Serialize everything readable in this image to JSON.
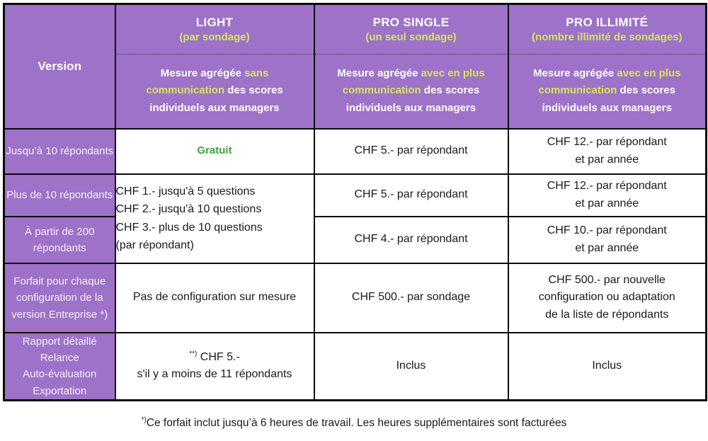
{
  "colors": {
    "purple": "#9e72c8",
    "lime": "#d6e45a",
    "green": "#3ea43e",
    "border": "#0a0a0a",
    "body_text": "#1a1a1a",
    "header_text": "#ffffff"
  },
  "table": {
    "header": {
      "version_label": "Version",
      "plans": [
        {
          "title": "LIGHT",
          "subtitle": "(par sondage)",
          "desc_pre": "Mesure agrégée ",
          "desc_bold": "sans communication",
          "desc_post": " des scores individuels aux managers"
        },
        {
          "title": "PRO SINGLE",
          "subtitle": "(un seul sondage)",
          "desc_pre": "Mesure agrégée ",
          "desc_bold": "avec en plus communication",
          "desc_post": " des scores individuels aux managers"
        },
        {
          "title": "PRO ILLIMITÉ",
          "subtitle": "(nombre illimité de sondages)",
          "desc_pre": "Mesure agrégée ",
          "desc_bold": "avec en plus communication",
          "desc_post": " des scores individuels aux managers"
        }
      ]
    },
    "rows": {
      "r1": {
        "label": "Jusqu’à 10 répondants",
        "light": "Gratuit",
        "pro_single": "CHF 5.- par répondant",
        "pro_illimite": [
          "CHF 12.- par répondant",
          "et par année"
        ]
      },
      "r2": {
        "label": "Plus de 10 répondants",
        "light_merged": [
          "CHF 1.- jusqu'à 5 questions",
          "CHF 2.- jusqu'à 10 questions",
          "CHF 3.- plus de 10 questions",
          "(par répondant)"
        ],
        "pro_single": "CHF 5.- par répondant",
        "pro_illimite": [
          "CHF 12.- par répondant",
          "et par année"
        ]
      },
      "r3": {
        "label": "À partir de 200 répondants",
        "pro_single": "CHF 4.- par répondant",
        "pro_illimite": [
          "CHF 10.- par répondant",
          "et par année"
        ]
      },
      "r4": {
        "label": "Forfait pour chaque configuration de la version Entreprise *)",
        "light": "Pas de configuration sur mesure",
        "pro_single": "CHF 500.- par sondage",
        "pro_illimite": [
          "CHF 500.- par nouvelle",
          "configuration ou adaptation",
          "de la liste de répondants"
        ]
      },
      "r5": {
        "label_lines": [
          "Rapport détaillé",
          "Relance",
          "Auto-évaluation",
          "Exportation"
        ],
        "light_sup": "**)",
        "light_price": " CHF 5.-",
        "light_line2": "s'il y a moins de 11 répondants",
        "pro_single": "Inclus",
        "pro_illimite": "Inclus"
      }
    }
  },
  "footnote": {
    "sup": "*)",
    "text": "Ce forfait inclut jusqu’à 6 heures de travail. Les heures supplémentaires sont facturées"
  }
}
